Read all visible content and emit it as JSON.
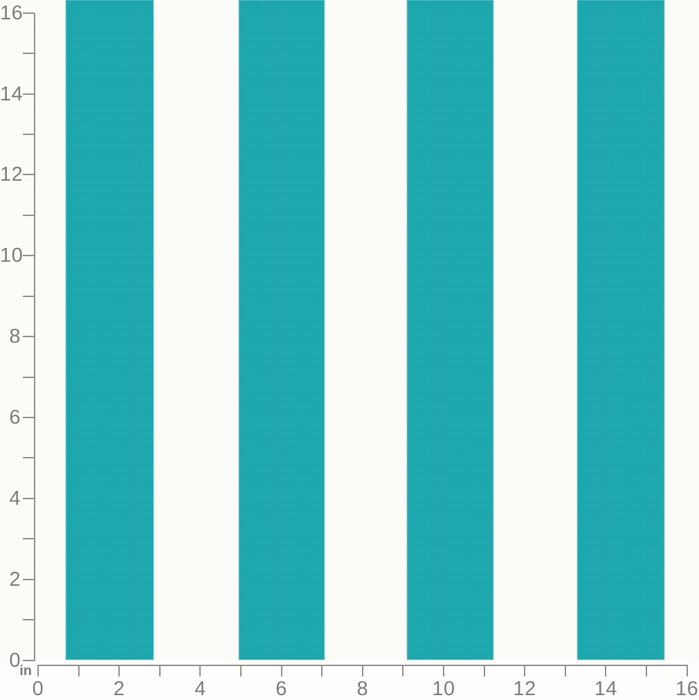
{
  "photo": {
    "fabric": {
      "white_color": "#fdfdfa",
      "teal_color": "#16a5ac",
      "stripes_in": [
        {
          "from": 0.68,
          "to": 2.85
        },
        {
          "from": 4.95,
          "to": 7.07
        },
        {
          "from": 9.1,
          "to": 11.23
        },
        {
          "from": 13.29,
          "to": 15.44
        }
      ]
    },
    "ruler": {
      "unit": "in",
      "min": 0,
      "max": 16,
      "tick_step_in": 1,
      "label_step_in": 2,
      "horizontal_labels": [
        "0",
        "2",
        "4",
        "6",
        "8",
        "10",
        "12",
        "14",
        "16"
      ],
      "vertical_labels": [
        "0",
        "2",
        "4",
        "6",
        "8",
        "10",
        "12",
        "14",
        "16"
      ],
      "line_color": "#8f8f8f",
      "label_color": "#7c7c7c"
    }
  }
}
